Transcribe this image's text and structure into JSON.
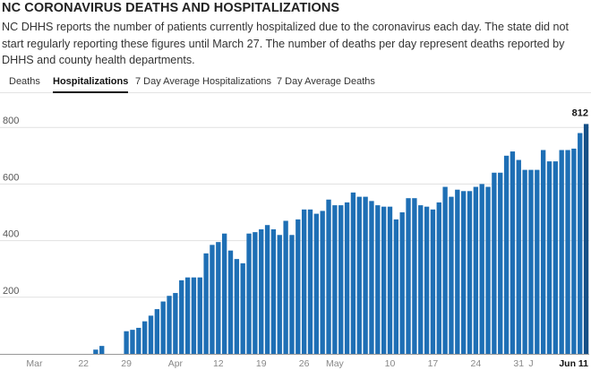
{
  "header": {
    "title": "NC CORONAVIRUS DEATHS AND HOSPITALIZATIONS",
    "description": "NC DHHS reports the number of patients currently hospitalized due to the coronavirus each day. The state did not start regularly reporting these figures until March 27. The number of deaths per day represent deaths reported by DHHS and county health departments."
  },
  "tabs": [
    {
      "label": "Deaths",
      "active": false
    },
    {
      "label": "Hospitalizations",
      "active": true
    },
    {
      "label": "7 Day Average Hospitalizations",
      "active": false
    },
    {
      "label": "7 Day Average Deaths",
      "active": false
    }
  ],
  "colors": {
    "bar": "#1e6fb5",
    "bar_last": "#154f86"
  },
  "chart_data": {
    "type": "bar",
    "title": "Hospitalizations",
    "ylim": [
      0,
      830
    ],
    "yticks": [
      200,
      400,
      600,
      800
    ],
    "x_tick_labels": [
      {
        "label": "Mar",
        "index": 0,
        "bold": false
      },
      {
        "label": "22",
        "index": 8,
        "bold": false
      },
      {
        "label": "29",
        "index": 15,
        "bold": false
      },
      {
        "label": "Apr",
        "index": 23,
        "bold": false
      },
      {
        "label": "12",
        "index": 30,
        "bold": false
      },
      {
        "label": "19",
        "index": 37,
        "bold": false
      },
      {
        "label": "26",
        "index": 44,
        "bold": false
      },
      {
        "label": "May",
        "index": 49,
        "bold": false
      },
      {
        "label": "10",
        "index": 58,
        "bold": false
      },
      {
        "label": "17",
        "index": 65,
        "bold": false
      },
      {
        "label": "24",
        "index": 72,
        "bold": false
      },
      {
        "label": "31",
        "index": 79,
        "bold": false
      },
      {
        "label": "J",
        "index": 81,
        "bold": false
      },
      {
        "label": "Jun 11",
        "index": 90,
        "bold": true
      }
    ],
    "value_label": {
      "text": "812",
      "index": 90
    },
    "values": [
      0,
      0,
      0,
      0,
      0,
      0,
      0,
      0,
      0,
      0,
      15,
      28,
      0,
      0,
      0,
      80,
      85,
      92,
      115,
      135,
      158,
      185,
      205,
      215,
      260,
      270,
      270,
      270,
      355,
      385,
      395,
      425,
      365,
      335,
      320,
      425,
      430,
      440,
      455,
      440,
      420,
      470,
      420,
      475,
      510,
      510,
      495,
      505,
      545,
      525,
      525,
      535,
      570,
      555,
      555,
      540,
      525,
      520,
      520,
      475,
      500,
      550,
      550,
      525,
      520,
      510,
      535,
      590,
      555,
      580,
      575,
      575,
      590,
      600,
      590,
      640,
      640,
      700,
      715,
      685,
      650,
      650,
      650,
      720,
      680,
      680,
      720,
      720,
      725,
      780,
      812
    ]
  }
}
